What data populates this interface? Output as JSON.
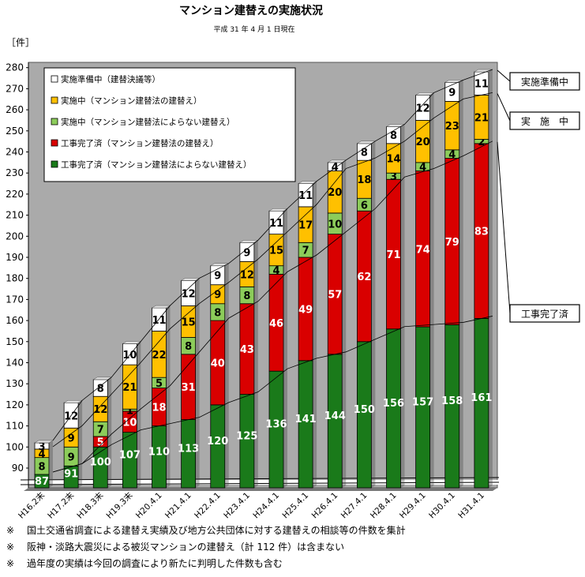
{
  "chart_data": {
    "type": "stacked-bar",
    "title": "マンション建替えの実施状況",
    "subtitle": "平成 31 年 4 月 1 日現在",
    "ylabel": "［件］",
    "ylim": [
      80,
      280
    ],
    "y_axis_break": true,
    "yticks": [
      90,
      100,
      110,
      120,
      130,
      140,
      150,
      160,
      170,
      180,
      190,
      200,
      210,
      220,
      230,
      240,
      250,
      260,
      270,
      280
    ],
    "grid": false,
    "legend_position": "top-left",
    "categories": [
      "H16.2末",
      "H17.2末",
      "H18.3末",
      "H19.3末",
      "H20.4.1",
      "H21.4.1",
      "H22.4.1",
      "H23.4.1",
      "H24.4.1",
      "H25.4.1",
      "H26.4.1",
      "H27.4.1",
      "H28.4.1",
      "H29.4.1",
      "H30.4.1",
      "H31.4.1"
    ],
    "series": [
      {
        "name": "工事完了済（マンション建替法によらない建替え）",
        "color": "#1a7a1a",
        "values": [
          87,
          91,
          100,
          107,
          110,
          113,
          120,
          125,
          136,
          141,
          144,
          150,
          156,
          157,
          158,
          161
        ]
      },
      {
        "name": "工事完了済（マンション建替法の建替え）",
        "color": "#d90000",
        "values": [
          0,
          0,
          5,
          10,
          18,
          31,
          40,
          43,
          46,
          49,
          57,
          62,
          71,
          74,
          79,
          83
        ]
      },
      {
        "name": "実施中（マンション建替法によらない建替え）",
        "color": "#8ccc5a",
        "values": [
          8,
          9,
          7,
          1,
          5,
          8,
          8,
          8,
          4,
          7,
          10,
          6,
          3,
          4,
          4,
          2
        ]
      },
      {
        "name": "実施中（マンション建替法の建替え）",
        "color": "#ffc000",
        "values": [
          4,
          9,
          12,
          21,
          22,
          15,
          9,
          12,
          15,
          17,
          20,
          18,
          14,
          20,
          23,
          21
        ]
      },
      {
        "name": "実施準備中（建替決議等）",
        "color": "#ffffff",
        "values": [
          3,
          12,
          8,
          10,
          11,
          12,
          9,
          9,
          11,
          11,
          4,
          8,
          8,
          12,
          9,
          11
        ]
      }
    ],
    "callouts": [
      "実施準備中",
      "実　施　中",
      "工事完了済"
    ]
  },
  "notes": [
    {
      "mark": "※",
      "text": "国土交通省調査による建替え実績及び地方公共団体に対する建替えの相談等の件数を集計"
    },
    {
      "mark": "※",
      "text": "阪神・淡路大震災による被災マンションの建替え（計 112 件）は含まない"
    },
    {
      "mark": "※",
      "text": "過年度の実績は今回の調査により新たに判明した件数も含む"
    }
  ]
}
